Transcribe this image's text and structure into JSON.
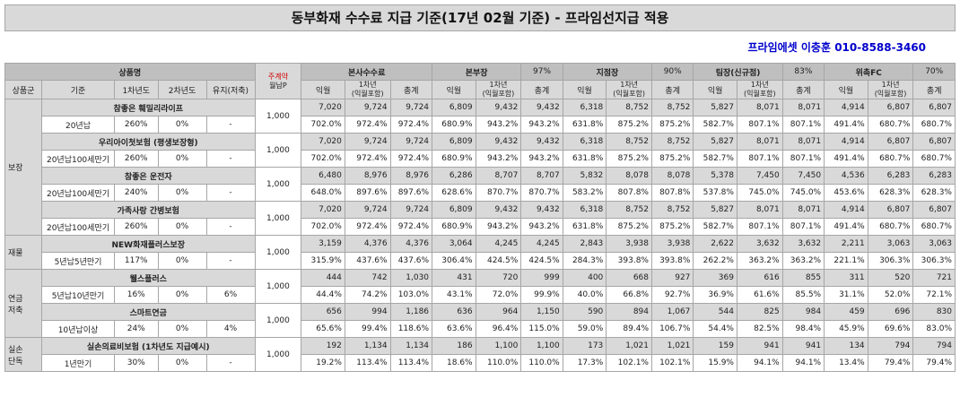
{
  "title": "동부화재 수수료 지급 기준(17년 02월 기준) - 프라임선지급 적용",
  "contact": "프라임에셋 이충훈 010-8588-3460",
  "header": {
    "product_label": "상품명",
    "monthly_top": "주계약",
    "monthly_bottom": "월납P",
    "groups": [
      {
        "name": "본사수수료",
        "pct": ""
      },
      {
        "name": "본부장",
        "pct": "97%"
      },
      {
        "name": "지점장",
        "pct": "90%"
      },
      {
        "name": "팀장(신규점)",
        "pct": "83%"
      },
      {
        "name": "위촉FC",
        "pct": "70%"
      }
    ],
    "sub": [
      "상품군",
      "기준",
      "1차년도",
      "2차년도",
      "유지(저축)"
    ],
    "col_ik": "익월",
    "col_first_a": "1차년",
    "col_first_b": "(익월포함)",
    "col_total": "총계"
  },
  "categories": [
    {
      "name": "보장",
      "span": 8
    },
    {
      "name": "재물",
      "span": 2
    },
    {
      "name": "연금\n저축",
      "span": 4
    },
    {
      "name": "실손\n단독",
      "span": 2
    }
  ],
  "products": [
    {
      "name": "참좋은 훼밀리라이프",
      "cond": [
        "20년납",
        "260%",
        "0%",
        "-"
      ],
      "monthly": "1,000",
      "amt": [
        [
          "7,020",
          "9,724",
          "9,724"
        ],
        [
          "6,809",
          "9,432",
          "9,432"
        ],
        [
          "6,318",
          "8,752",
          "8,752"
        ],
        [
          "5,827",
          "8,071",
          "8,071"
        ],
        [
          "4,914",
          "6,807",
          "6,807"
        ]
      ],
      "rate": [
        [
          "702.0%",
          "972.4%",
          "972.4%"
        ],
        [
          "680.9%",
          "943.2%",
          "943.2%"
        ],
        [
          "631.8%",
          "875.2%",
          "875.2%"
        ],
        [
          "582.7%",
          "807.1%",
          "807.1%"
        ],
        [
          "491.4%",
          "680.7%",
          "680.7%"
        ]
      ]
    },
    {
      "name": "우리아이첫보험 (평생보장형)",
      "cond": [
        "20년납100세만기",
        "260%",
        "0%",
        "-"
      ],
      "monthly": "1,000",
      "amt": [
        [
          "7,020",
          "9,724",
          "9,724"
        ],
        [
          "6,809",
          "9,432",
          "9,432"
        ],
        [
          "6,318",
          "8,752",
          "8,752"
        ],
        [
          "5,827",
          "8,071",
          "8,071"
        ],
        [
          "4,914",
          "6,807",
          "6,807"
        ]
      ],
      "rate": [
        [
          "702.0%",
          "972.4%",
          "972.4%"
        ],
        [
          "680.9%",
          "943.2%",
          "943.2%"
        ],
        [
          "631.8%",
          "875.2%",
          "875.2%"
        ],
        [
          "582.7%",
          "807.1%",
          "807.1%"
        ],
        [
          "491.4%",
          "680.7%",
          "680.7%"
        ]
      ]
    },
    {
      "name": "참좋은 운전자",
      "cond": [
        "20년납100세만기",
        "240%",
        "0%",
        "-"
      ],
      "monthly": "1,000",
      "amt": [
        [
          "6,480",
          "8,976",
          "8,976"
        ],
        [
          "6,286",
          "8,707",
          "8,707"
        ],
        [
          "5,832",
          "8,078",
          "8,078"
        ],
        [
          "5,378",
          "7,450",
          "7,450"
        ],
        [
          "4,536",
          "6,283",
          "6,283"
        ]
      ],
      "rate": [
        [
          "648.0%",
          "897.6%",
          "897.6%"
        ],
        [
          "628.6%",
          "870.7%",
          "870.7%"
        ],
        [
          "583.2%",
          "807.8%",
          "807.8%"
        ],
        [
          "537.8%",
          "745.0%",
          "745.0%"
        ],
        [
          "453.6%",
          "628.3%",
          "628.3%"
        ]
      ]
    },
    {
      "name": "가족사랑 간병보험",
      "cond": [
        "20년납100세만기",
        "260%",
        "0%",
        "-"
      ],
      "monthly": "1,000",
      "amt": [
        [
          "7,020",
          "9,724",
          "9,724"
        ],
        [
          "6,809",
          "9,432",
          "9,432"
        ],
        [
          "6,318",
          "8,752",
          "8,752"
        ],
        [
          "5,827",
          "8,071",
          "8,071"
        ],
        [
          "4,914",
          "6,807",
          "6,807"
        ]
      ],
      "rate": [
        [
          "702.0%",
          "972.4%",
          "972.4%"
        ],
        [
          "680.9%",
          "943.2%",
          "943.2%"
        ],
        [
          "631.8%",
          "875.2%",
          "875.2%"
        ],
        [
          "582.7%",
          "807.1%",
          "807.1%"
        ],
        [
          "491.4%",
          "680.7%",
          "680.7%"
        ]
      ]
    },
    {
      "name": "NEW화재플러스보장",
      "cond": [
        "5년납5년만기",
        "117%",
        "0%",
        "-"
      ],
      "monthly": "1,000",
      "amt": [
        [
          "3,159",
          "4,376",
          "4,376"
        ],
        [
          "3,064",
          "4,245",
          "4,245"
        ],
        [
          "2,843",
          "3,938",
          "3,938"
        ],
        [
          "2,622",
          "3,632",
          "3,632"
        ],
        [
          "2,211",
          "3,063",
          "3,063"
        ]
      ],
      "rate": [
        [
          "315.9%",
          "437.6%",
          "437.6%"
        ],
        [
          "306.4%",
          "424.5%",
          "424.5%"
        ],
        [
          "284.3%",
          "393.8%",
          "393.8%"
        ],
        [
          "262.2%",
          "363.2%",
          "363.2%"
        ],
        [
          "221.1%",
          "306.3%",
          "306.3%"
        ]
      ]
    },
    {
      "name": "웰스플러스",
      "cond": [
        "5년납10년만기",
        "16%",
        "0%",
        "6%"
      ],
      "monthly": "1,000",
      "amt": [
        [
          "444",
          "742",
          "1,030"
        ],
        [
          "431",
          "720",
          "999"
        ],
        [
          "400",
          "668",
          "927"
        ],
        [
          "369",
          "616",
          "855"
        ],
        [
          "311",
          "520",
          "721"
        ]
      ],
      "rate": [
        [
          "44.4%",
          "74.2%",
          "103.0%"
        ],
        [
          "43.1%",
          "72.0%",
          "99.9%"
        ],
        [
          "40.0%",
          "66.8%",
          "92.7%"
        ],
        [
          "36.9%",
          "61.6%",
          "85.5%"
        ],
        [
          "31.1%",
          "52.0%",
          "72.1%"
        ]
      ]
    },
    {
      "name": "스마트연금",
      "cond": [
        "10년납이상",
        "24%",
        "0%",
        "4%"
      ],
      "monthly": "1,000",
      "amt": [
        [
          "656",
          "994",
          "1,186"
        ],
        [
          "636",
          "964",
          "1,150"
        ],
        [
          "590",
          "894",
          "1,067"
        ],
        [
          "544",
          "825",
          "984"
        ],
        [
          "459",
          "696",
          "830"
        ]
      ],
      "rate": [
        [
          "65.6%",
          "99.4%",
          "118.6%"
        ],
        [
          "63.6%",
          "96.4%",
          "115.0%"
        ],
        [
          "59.0%",
          "89.4%",
          "106.7%"
        ],
        [
          "54.4%",
          "82.5%",
          "98.4%"
        ],
        [
          "45.9%",
          "69.6%",
          "83.0%"
        ]
      ]
    },
    {
      "name": "실손의료비보험 (1차년도 지급예시)",
      "cond": [
        "1년만기",
        "30%",
        "0%",
        "-"
      ],
      "monthly": "1,000",
      "amt": [
        [
          "192",
          "1,134",
          "1,134"
        ],
        [
          "186",
          "1,100",
          "1,100"
        ],
        [
          "173",
          "1,021",
          "1,021"
        ],
        [
          "159",
          "941",
          "941"
        ],
        [
          "134",
          "794",
          "794"
        ]
      ],
      "rate": [
        [
          "19.2%",
          "113.4%",
          "113.4%"
        ],
        [
          "18.6%",
          "110.0%",
          "110.0%"
        ],
        [
          "17.3%",
          "102.1%",
          "102.1%"
        ],
        [
          "15.9%",
          "94.1%",
          "94.1%"
        ],
        [
          "13.4%",
          "79.4%",
          "79.4%"
        ]
      ]
    }
  ]
}
